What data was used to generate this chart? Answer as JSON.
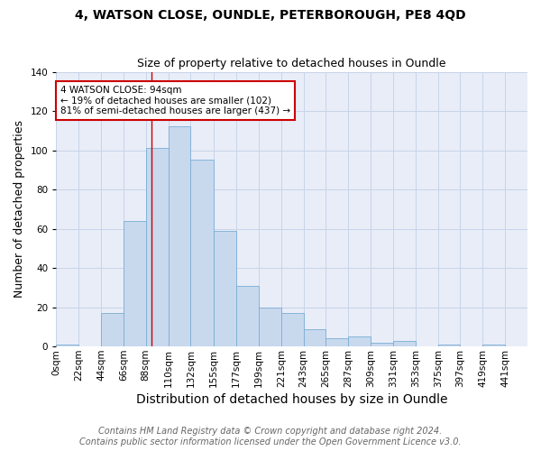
{
  "title": "4, WATSON CLOSE, OUNDLE, PETERBOROUGH, PE8 4QD",
  "subtitle": "Size of property relative to detached houses in Oundle",
  "xlabel": "Distribution of detached houses by size in Oundle",
  "ylabel": "Number of detached properties",
  "bin_labels": [
    "0sqm",
    "22sqm",
    "44sqm",
    "66sqm",
    "88sqm",
    "110sqm",
    "132sqm",
    "155sqm",
    "177sqm",
    "199sqm",
    "221sqm",
    "243sqm",
    "265sqm",
    "287sqm",
    "309sqm",
    "331sqm",
    "353sqm",
    "375sqm",
    "397sqm",
    "419sqm",
    "441sqm"
  ],
  "bin_edges": [
    0,
    22,
    44,
    66,
    88,
    110,
    132,
    155,
    177,
    199,
    221,
    243,
    265,
    287,
    309,
    331,
    353,
    375,
    397,
    419,
    441
  ],
  "bar_heights": [
    1,
    0,
    17,
    64,
    101,
    112,
    95,
    59,
    31,
    20,
    17,
    9,
    4,
    5,
    2,
    3,
    0,
    1,
    0,
    1
  ],
  "bar_color": "#c8d9ee",
  "bar_edge_color": "#7aadd4",
  "property_size": 94,
  "red_line_color": "#cc0000",
  "annotation_text": "4 WATSON CLOSE: 94sqm\n← 19% of detached houses are smaller (102)\n81% of semi-detached houses are larger (437) →",
  "annotation_box_color": "white",
  "annotation_box_edge": "#cc0000",
  "grid_color": "#c8d4e8",
  "background_color": "#e8edf8",
  "footer_line1": "Contains HM Land Registry data © Crown copyright and database right 2024.",
  "footer_line2": "Contains public sector information licensed under the Open Government Licence v3.0.",
  "ylim": [
    0,
    140
  ],
  "title_fontsize": 10,
  "subtitle_fontsize": 9,
  "xlabel_fontsize": 10,
  "ylabel_fontsize": 9,
  "tick_fontsize": 7.5,
  "footer_fontsize": 7
}
